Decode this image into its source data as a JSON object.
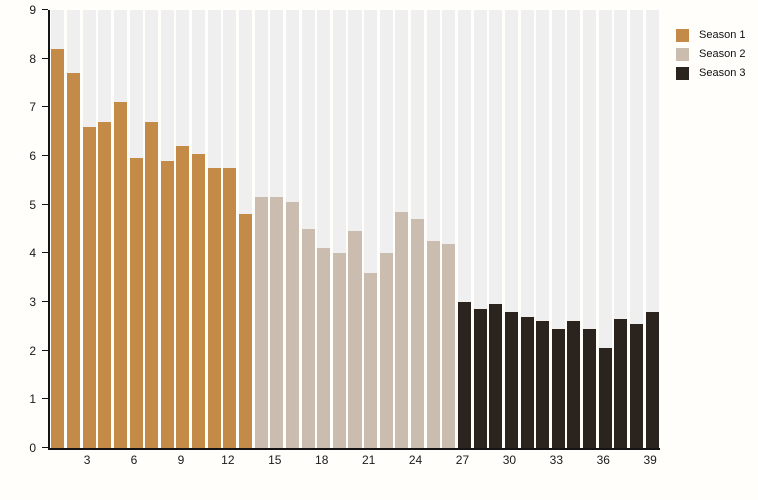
{
  "chart_data": {
    "type": "bar",
    "title": "",
    "xlabel": "",
    "ylabel": "",
    "ylim": [
      0,
      9
    ],
    "y_ticks": [
      0,
      1,
      2,
      3,
      4,
      5,
      6,
      7,
      8,
      9
    ],
    "x_ticks": [
      3,
      6,
      9,
      12,
      15,
      18,
      21,
      24,
      27,
      30,
      33,
      36,
      39
    ],
    "total_bars": 39,
    "grid": "vertical-stripes",
    "legend_position": "top-right",
    "series": [
      {
        "name": "Season 1",
        "color": "#c48a47",
        "start_episode": 1,
        "values": [
          8.2,
          7.7,
          6.6,
          6.7,
          7.1,
          5.95,
          6.7,
          5.9,
          6.2,
          6.05,
          5.75,
          5.75,
          4.8
        ]
      },
      {
        "name": "Season 2",
        "color": "#cbbcb0",
        "start_episode": 14,
        "values": [
          5.15,
          5.15,
          5.05,
          4.5,
          4.1,
          4.0,
          4.45,
          3.6,
          4.0,
          4.85,
          4.7,
          4.25,
          4.2
        ]
      },
      {
        "name": "Season 3",
        "color": "#2b241e",
        "start_episode": 27,
        "values": [
          3.0,
          2.85,
          2.95,
          2.8,
          2.7,
          2.6,
          2.45,
          2.6,
          2.45,
          2.05,
          2.65,
          2.55,
          2.8
        ]
      }
    ],
    "colors": {
      "stripe_background": "#efeff0",
      "page_background": "#fffefa",
      "axis": "#141414",
      "text": "#1a1a1a"
    }
  },
  "legend": {
    "items": [
      {
        "label": "Season 1",
        "color": "#c48a47"
      },
      {
        "label": "Season 2",
        "color": "#cbbcb0"
      },
      {
        "label": "Season 3",
        "color": "#2b241e"
      }
    ]
  }
}
